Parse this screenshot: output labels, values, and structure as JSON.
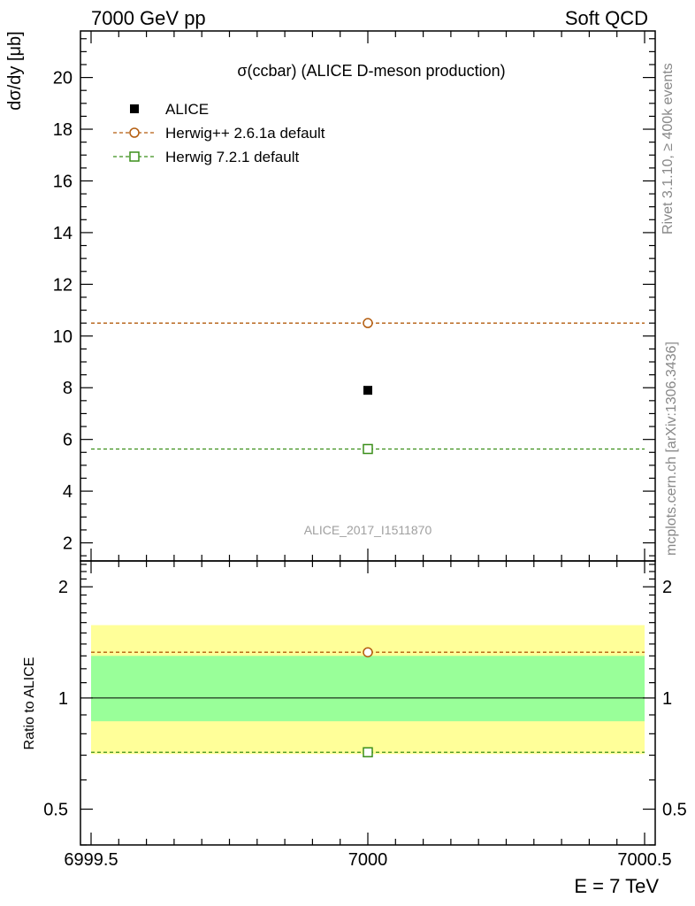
{
  "header": {
    "left": "7000 GeV pp",
    "right": "Soft QCD"
  },
  "side_labels": {
    "rivet": "Rivet 3.1.10, ≥ 400k events",
    "mcplots": "mcplots.cern.ch [arXiv:1306.3436]"
  },
  "colors": {
    "data": "#000000",
    "herwigpp": "#b35c0e",
    "herwig7": "#3b8f1a",
    "band_inner": "#99ff99",
    "band_outer": "#ffff99",
    "watermark": "#a0a0a0"
  },
  "chart_data": {
    "type": "scatter",
    "title": "σ(ccbar) (ALICE D-meson production)",
    "watermark": "ALICE_2017_I1511870",
    "ylabel_main": "dσ/dy [μb]",
    "ylabel_ratio": "Ratio to ALICE",
    "xlabel": "E = 7 TeV",
    "xlim": [
      6999.5,
      7000.5
    ],
    "xticks": [
      "6999.5",
      "7000",
      "7000.5"
    ],
    "ylim_main": [
      1.3,
      21.8
    ],
    "yticks_main": [
      "2",
      "4",
      "6",
      "8",
      "10",
      "12",
      "14",
      "16",
      "18",
      "20"
    ],
    "ylim_ratio": [
      0.4,
      2.35
    ],
    "yticks_ratio": [
      "0.5",
      "1",
      "2"
    ],
    "legend_position": "top-left",
    "series": [
      {
        "name": "ALICE",
        "marker": "filled-square",
        "x": [
          7000
        ],
        "y": [
          7.9
        ]
      },
      {
        "name": "Herwig++ 2.6.1a default",
        "marker": "open-circle",
        "line": "dashed",
        "x": [
          7000
        ],
        "y": [
          10.5
        ]
      },
      {
        "name": "Herwig 7.2.1 default",
        "marker": "open-square",
        "line": "dashed",
        "x": [
          7000
        ],
        "y": [
          5.63
        ]
      }
    ],
    "ratio": {
      "herwigpp": 1.33,
      "herwig7": 0.713,
      "band_inner": [
        0.865,
        1.3
      ],
      "band_outer": [
        0.705,
        1.575
      ]
    }
  }
}
